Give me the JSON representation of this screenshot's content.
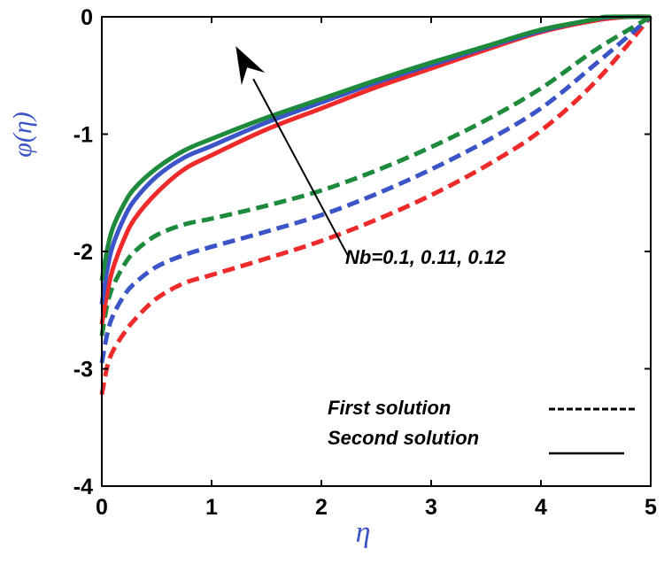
{
  "chart_data": {
    "type": "line",
    "title": "",
    "xlabel": "η",
    "ylabel": "φ(η)",
    "xlim": [
      0,
      5
    ],
    "ylim": [
      -4,
      0
    ],
    "xticks": [
      "0",
      "1",
      "2",
      "3",
      "4",
      "5"
    ],
    "yticks": [
      "0",
      "-1",
      "-2",
      "-3",
      "-4"
    ],
    "grid": false,
    "colors": {
      "red": "#ee2a2a",
      "blue": "#3b55c8",
      "green": "#1d8a3c"
    },
    "series": [
      {
        "style": "dashed",
        "color": "red",
        "x": [
          0,
          0.05,
          0.1,
          0.2,
          0.3,
          0.5,
          0.75,
          1,
          1.5,
          2,
          2.5,
          3,
          3.5,
          4,
          4.5,
          5
        ],
        "y": [
          -3.22,
          -2.98,
          -2.85,
          -2.7,
          -2.58,
          -2.4,
          -2.27,
          -2.2,
          -2.06,
          -1.91,
          -1.73,
          -1.52,
          -1.27,
          -0.97,
          -0.55,
          0
        ]
      },
      {
        "style": "dashed",
        "color": "blue",
        "x": [
          0,
          0.05,
          0.1,
          0.2,
          0.3,
          0.5,
          0.75,
          1,
          1.5,
          2,
          2.5,
          3,
          3.5,
          4,
          4.5,
          5
        ],
        "y": [
          -2.95,
          -2.7,
          -2.55,
          -2.38,
          -2.27,
          -2.13,
          -2.03,
          -1.96,
          -1.83,
          -1.69,
          -1.51,
          -1.3,
          -1.06,
          -0.78,
          -0.4,
          0
        ]
      },
      {
        "style": "dashed",
        "color": "green",
        "x": [
          0,
          0.05,
          0.1,
          0.2,
          0.3,
          0.5,
          0.75,
          1,
          1.5,
          2,
          2.5,
          3,
          3.5,
          4,
          4.5,
          5
        ],
        "y": [
          -2.72,
          -2.45,
          -2.3,
          -2.12,
          -2.0,
          -1.86,
          -1.77,
          -1.72,
          -1.61,
          -1.48,
          -1.31,
          -1.11,
          -0.88,
          -0.61,
          -0.28,
          0
        ]
      },
      {
        "style": "solid",
        "color": "red",
        "x": [
          0,
          0.05,
          0.1,
          0.2,
          0.3,
          0.5,
          0.75,
          1,
          1.5,
          2,
          2.5,
          3,
          3.5,
          4,
          4.5,
          4.8,
          5
        ],
        "y": [
          -2.62,
          -2.35,
          -2.15,
          -1.9,
          -1.72,
          -1.5,
          -1.3,
          -1.18,
          -0.96,
          -0.78,
          -0.6,
          -0.44,
          -0.28,
          -0.13,
          -0.03,
          0,
          0
        ]
      },
      {
        "style": "solid",
        "color": "blue",
        "x": [
          0,
          0.05,
          0.1,
          0.2,
          0.3,
          0.5,
          0.75,
          1,
          1.5,
          2,
          2.5,
          3,
          3.5,
          4,
          4.5,
          4.7,
          5
        ],
        "y": [
          -2.45,
          -2.15,
          -1.95,
          -1.72,
          -1.56,
          -1.36,
          -1.2,
          -1.1,
          -0.9,
          -0.73,
          -0.56,
          -0.41,
          -0.26,
          -0.12,
          -0.02,
          0,
          0
        ]
      },
      {
        "style": "solid",
        "color": "green",
        "x": [
          0,
          0.05,
          0.1,
          0.2,
          0.3,
          0.5,
          0.75,
          1,
          1.5,
          2,
          2.5,
          3,
          3.5,
          4,
          4.5,
          4.6,
          5
        ],
        "y": [
          -2.25,
          -1.98,
          -1.8,
          -1.6,
          -1.46,
          -1.29,
          -1.14,
          -1.04,
          -0.86,
          -0.7,
          -0.54,
          -0.39,
          -0.25,
          -0.11,
          -0.02,
          0,
          0
        ]
      }
    ],
    "annotation": {
      "text": "Nb=0.1, 0.11, 0.12",
      "arrow_from": [
        2.25,
        -2.05
      ],
      "arrow_to": [
        1.22,
        -0.25
      ]
    },
    "legend": {
      "position": "bottom-right",
      "entries": [
        {
          "label": "First solution",
          "style": "dashed"
        },
        {
          "label": "Second solution",
          "style": "solid"
        }
      ]
    }
  }
}
